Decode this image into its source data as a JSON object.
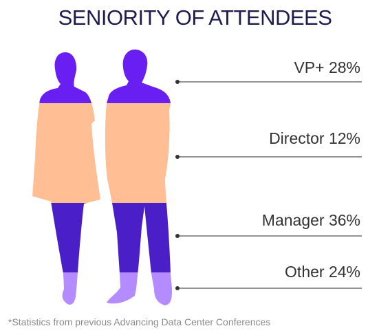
{
  "chart_data": {
    "type": "stacked-silhouette",
    "title": "SENIORITY OF ATTENDEES",
    "segments": [
      {
        "name": "VP+",
        "value": 28,
        "label": "VP+ 28%",
        "color": "#6a1ff2"
      },
      {
        "name": "Director",
        "value": 12,
        "label": "Director 12%",
        "color": "#ffbe94"
      },
      {
        "name": "Manager",
        "value": 36,
        "label": "Manager 36%",
        "color": "#4a1fc8"
      },
      {
        "name": "Other",
        "value": 24,
        "label": "Other 24%",
        "color": "#b48cff"
      }
    ],
    "footnote": "*Statistics from previous Advancing Data Center Conferences"
  }
}
